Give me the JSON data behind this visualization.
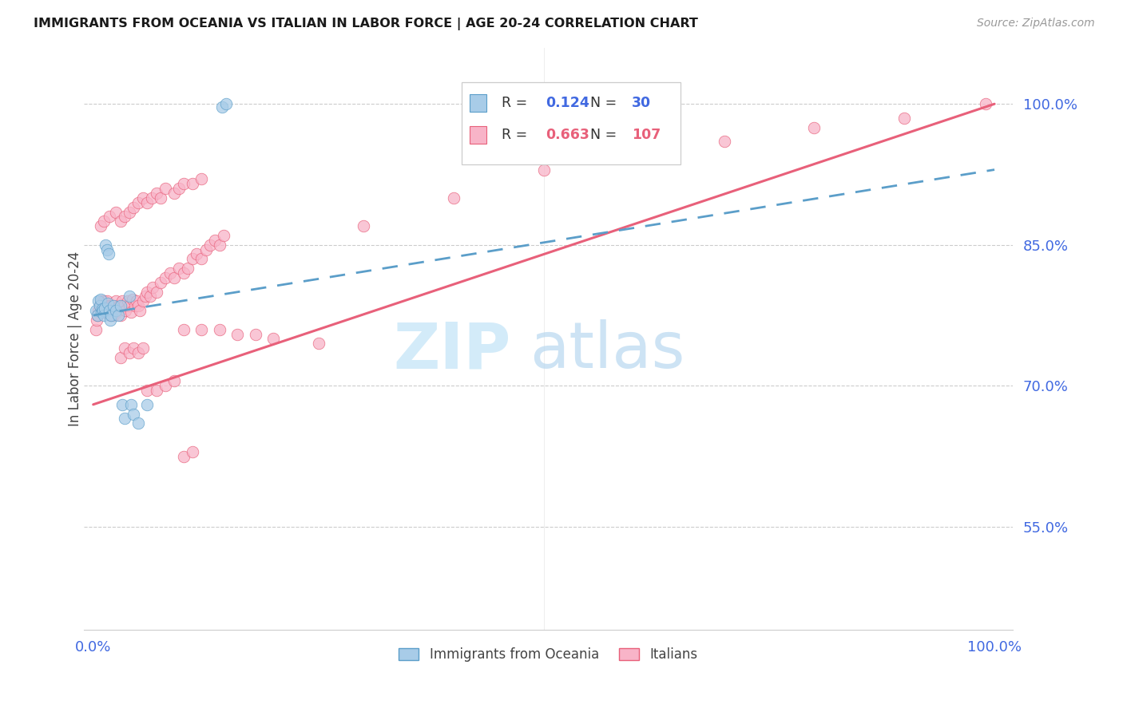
{
  "title": "IMMIGRANTS FROM OCEANIA VS ITALIAN IN LABOR FORCE | AGE 20-24 CORRELATION CHART",
  "source": "Source: ZipAtlas.com",
  "ylabel": "In Labor Force | Age 20-24",
  "ytick_vals": [
    0.55,
    0.7,
    0.85,
    1.0
  ],
  "ytick_labels": [
    "55.0%",
    "70.0%",
    "85.0%",
    "100.0%"
  ],
  "xmin": 0.0,
  "xmax": 1.0,
  "ymin": 0.44,
  "ymax": 1.06,
  "color_blue_fill": "#a8cce8",
  "color_blue_edge": "#5b9ec9",
  "color_pink_fill": "#f8b4c8",
  "color_pink_edge": "#e8607a",
  "color_blue_line": "#5b9ec9",
  "color_pink_line": "#e8607a",
  "color_axis_blue": "#4169E1",
  "color_grid": "#cccccc",
  "oceania_x": [
    0.003,
    0.005,
    0.006,
    0.007,
    0.008,
    0.009,
    0.01,
    0.011,
    0.012,
    0.013,
    0.014,
    0.015,
    0.016,
    0.017,
    0.018,
    0.019,
    0.02,
    0.022,
    0.025,
    0.028,
    0.03,
    0.032,
    0.035,
    0.04,
    0.042,
    0.045,
    0.05,
    0.06,
    0.143,
    0.147
  ],
  "oceania_y": [
    0.78,
    0.775,
    0.79,
    0.785,
    0.792,
    0.778,
    0.782,
    0.78,
    0.775,
    0.783,
    0.85,
    0.845,
    0.788,
    0.84,
    0.78,
    0.77,
    0.775,
    0.785,
    0.78,
    0.775,
    0.785,
    0.68,
    0.665,
    0.795,
    0.68,
    0.67,
    0.66,
    0.68,
    0.997,
    1.0
  ],
  "italian_x": [
    0.003,
    0.004,
    0.005,
    0.006,
    0.007,
    0.008,
    0.009,
    0.01,
    0.011,
    0.012,
    0.013,
    0.014,
    0.015,
    0.016,
    0.017,
    0.018,
    0.019,
    0.02,
    0.021,
    0.022,
    0.023,
    0.024,
    0.025,
    0.026,
    0.027,
    0.028,
    0.029,
    0.03,
    0.032,
    0.034,
    0.036,
    0.038,
    0.04,
    0.042,
    0.044,
    0.046,
    0.048,
    0.05,
    0.052,
    0.055,
    0.058,
    0.06,
    0.063,
    0.066,
    0.07,
    0.075,
    0.08,
    0.085,
    0.09,
    0.095,
    0.1,
    0.105,
    0.11,
    0.115,
    0.12,
    0.125,
    0.13,
    0.135,
    0.14,
    0.145,
    0.008,
    0.012,
    0.018,
    0.025,
    0.03,
    0.035,
    0.04,
    0.045,
    0.05,
    0.055,
    0.06,
    0.065,
    0.07,
    0.075,
    0.08,
    0.09,
    0.095,
    0.1,
    0.11,
    0.12,
    0.03,
    0.035,
    0.04,
    0.045,
    0.05,
    0.055,
    0.06,
    0.07,
    0.08,
    0.09,
    0.1,
    0.11,
    0.3,
    0.4,
    0.5,
    0.6,
    0.7,
    0.8,
    0.9,
    0.99,
    0.1,
    0.12,
    0.14,
    0.16,
    0.18,
    0.2,
    0.25
  ],
  "italian_y": [
    0.76,
    0.77,
    0.775,
    0.78,
    0.785,
    0.78,
    0.79,
    0.785,
    0.778,
    0.79,
    0.785,
    0.78,
    0.79,
    0.78,
    0.785,
    0.78,
    0.775,
    0.785,
    0.78,
    0.775,
    0.785,
    0.78,
    0.79,
    0.778,
    0.783,
    0.78,
    0.785,
    0.775,
    0.79,
    0.785,
    0.78,
    0.79,
    0.785,
    0.778,
    0.792,
    0.785,
    0.79,
    0.785,
    0.78,
    0.79,
    0.795,
    0.8,
    0.795,
    0.805,
    0.8,
    0.81,
    0.815,
    0.82,
    0.815,
    0.825,
    0.82,
    0.825,
    0.835,
    0.84,
    0.835,
    0.845,
    0.85,
    0.855,
    0.85,
    0.86,
    0.87,
    0.875,
    0.88,
    0.885,
    0.875,
    0.88,
    0.885,
    0.89,
    0.895,
    0.9,
    0.895,
    0.9,
    0.905,
    0.9,
    0.91,
    0.905,
    0.91,
    0.915,
    0.915,
    0.92,
    0.73,
    0.74,
    0.735,
    0.74,
    0.735,
    0.74,
    0.695,
    0.695,
    0.7,
    0.705,
    0.625,
    0.63,
    0.87,
    0.9,
    0.93,
    0.95,
    0.96,
    0.975,
    0.985,
    1.0,
    0.76,
    0.76,
    0.76,
    0.755,
    0.755,
    0.75,
    0.745
  ],
  "it_line_x": [
    0.0,
    1.0
  ],
  "it_line_y": [
    0.68,
    1.0
  ],
  "oc_line_x": [
    0.0,
    1.0
  ],
  "oc_line_y": [
    0.775,
    0.93
  ]
}
